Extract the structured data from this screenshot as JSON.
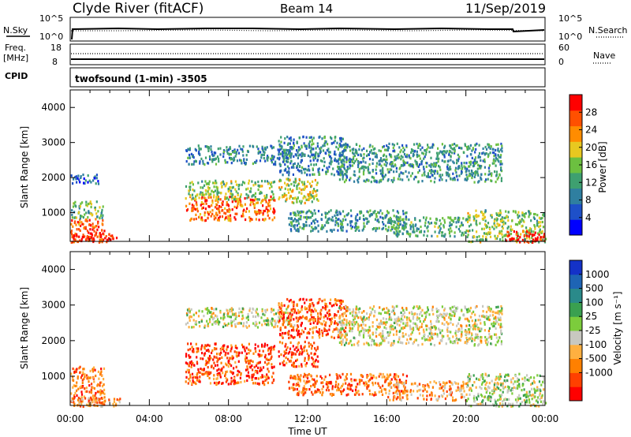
{
  "header": {
    "station": "Clyde River (fitACF)",
    "beam": "Beam 14",
    "date": "11/Sep/2019"
  },
  "noise_panel": {
    "left_label": "N.Sky",
    "right_label": "N.Search",
    "left_ticks": [
      "10^5",
      "10^0"
    ],
    "right_ticks": [
      "10^5",
      "10^0"
    ]
  },
  "freq_panel": {
    "left_label_line1": "Freq.",
    "left_label_line2": "[MHz]",
    "left_ticks": [
      "18",
      "8"
    ],
    "right_label": "Nave",
    "right_ticks": [
      "60",
      "0"
    ]
  },
  "cpid": {
    "label": "CPID",
    "value": "twofsound (1-min) -3505"
  },
  "colors": {
    "power": [
      "#0000ff",
      "#1e50c8",
      "#2f7fa0",
      "#3ea070",
      "#6cc040",
      "#e8c820",
      "#ff8c00",
      "#ff5000",
      "#ff0000"
    ],
    "velocity": [
      "#ff0000",
      "#ff4000",
      "#ff8000",
      "#ffb040",
      "#c8c8c0",
      "#7ccc3c",
      "#3aa050",
      "#2a8a8a",
      "#1e64b4",
      "#1432c8"
    ]
  },
  "chart_data": [
    {
      "type": "heatmap",
      "name": "power",
      "ylabel": "Slant Range [km]",
      "ylim": [
        180,
        4500
      ],
      "xlim_hours": [
        0,
        24
      ],
      "y_ticks": [
        "1000",
        "2000",
        "3000",
        "4000"
      ],
      "colorbar": {
        "label": "Power [dB]",
        "ticks": [
          "4",
          "8",
          "12",
          "16",
          "20",
          "24",
          "28"
        ],
        "range": [
          0,
          32
        ]
      },
      "regions": [
        {
          "t0": 0.0,
          "t1": 1.7,
          "r0": 180,
          "r1": 850,
          "level": 0.82
        },
        {
          "t0": 0.0,
          "t1": 1.7,
          "r0": 850,
          "r1": 1350,
          "level": 0.45
        },
        {
          "t0": 0.0,
          "t1": 1.4,
          "r0": 1850,
          "r1": 2150,
          "level": 0.2
        },
        {
          "t0": 0.0,
          "t1": 2.5,
          "r0": 180,
          "r1": 450,
          "level": 0.95
        },
        {
          "t0": 5.8,
          "t1": 10.3,
          "r0": 800,
          "r1": 1500,
          "level": 0.8
        },
        {
          "t0": 5.8,
          "t1": 10.3,
          "r0": 1400,
          "r1": 1950,
          "level": 0.5
        },
        {
          "t0": 5.8,
          "t1": 11.3,
          "r0": 2400,
          "r1": 2950,
          "level": 0.3
        },
        {
          "t0": 10.5,
          "t1": 12.5,
          "r0": 1300,
          "r1": 2000,
          "level": 0.55
        },
        {
          "t0": 10.5,
          "t1": 14.0,
          "r0": 2100,
          "r1": 3200,
          "level": 0.3
        },
        {
          "t0": 13.5,
          "t1": 21.8,
          "r0": 1900,
          "r1": 3000,
          "level": 0.35
        },
        {
          "t0": 11.0,
          "t1": 17.0,
          "r0": 500,
          "r1": 1100,
          "level": 0.35
        },
        {
          "t0": 16.0,
          "t1": 20.0,
          "r0": 350,
          "r1": 900,
          "level": 0.4
        },
        {
          "t0": 20.0,
          "t1": 24.0,
          "r0": 180,
          "r1": 1100,
          "level": 0.5
        },
        {
          "t0": 22.0,
          "t1": 24.0,
          "r0": 180,
          "r1": 500,
          "level": 0.9
        }
      ]
    },
    {
      "type": "heatmap",
      "name": "velocity",
      "ylabel": "Slant Range [km]",
      "xlabel": "Time UT",
      "ylim": [
        180,
        4500
      ],
      "xlim_hours": [
        0,
        24
      ],
      "y_ticks": [
        "1000",
        "2000",
        "3000",
        "4000"
      ],
      "x_ticks": [
        "00:00",
        "04:00",
        "08:00",
        "12:00",
        "16:00",
        "20:00",
        "00:00"
      ],
      "colorbar": {
        "label": "Velocity [m s⁻¹]",
        "ticks": [
          "1000",
          "500",
          "100",
          "25",
          "-25",
          "-100",
          "-500",
          "-1000"
        ],
        "range": [
          -1000,
          1000
        ]
      },
      "regions": [
        {
          "t0": 0.0,
          "t1": 1.7,
          "r0": 180,
          "r1": 1300,
          "level": 0.22
        },
        {
          "t0": 0.0,
          "t1": 2.5,
          "r0": 180,
          "r1": 450,
          "level": 0.3
        },
        {
          "t0": 5.8,
          "t1": 10.3,
          "r0": 800,
          "r1": 1950,
          "level": 0.15
        },
        {
          "t0": 5.8,
          "t1": 11.3,
          "r0": 2400,
          "r1": 2950,
          "level": 0.45
        },
        {
          "t0": 10.5,
          "t1": 12.5,
          "r0": 1300,
          "r1": 2000,
          "level": 0.15
        },
        {
          "t0": 10.5,
          "t1": 14.0,
          "r0": 2100,
          "r1": 3200,
          "level": 0.18
        },
        {
          "t0": 13.5,
          "t1": 21.8,
          "r0": 1900,
          "r1": 3000,
          "level": 0.45
        },
        {
          "t0": 11.0,
          "t1": 17.0,
          "r0": 500,
          "r1": 1100,
          "level": 0.22
        },
        {
          "t0": 16.0,
          "t1": 20.0,
          "r0": 350,
          "r1": 900,
          "level": 0.3
        },
        {
          "t0": 20.0,
          "t1": 24.0,
          "r0": 180,
          "r1": 1100,
          "level": 0.5
        }
      ]
    }
  ]
}
